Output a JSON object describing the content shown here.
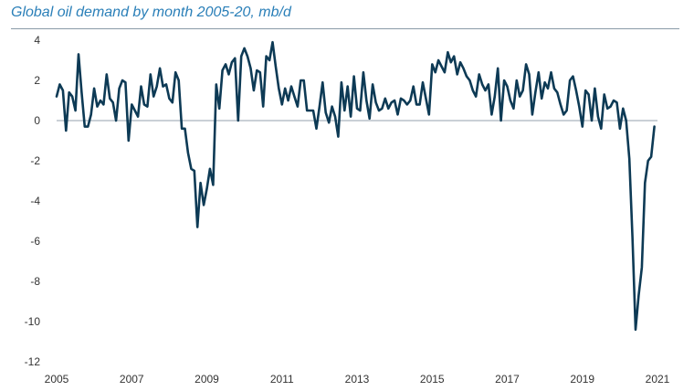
{
  "chart_data": {
    "type": "line",
    "title": "Global oil demand by month 2005-20, mb/d",
    "xlabel": "",
    "ylabel": "",
    "xlim": [
      2005.0,
      2021.0
    ],
    "ylim": [
      -12,
      4
    ],
    "x_ticks": [
      2005,
      2007,
      2009,
      2011,
      2013,
      2015,
      2017,
      2019,
      2021
    ],
    "y_ticks": [
      4,
      2,
      0,
      -2,
      -4,
      -6,
      -8,
      -10,
      -12
    ],
    "grid": false,
    "zero_line": true,
    "legend": "none",
    "line_color": "#0d3a55",
    "series": [
      {
        "x": [
          2005.0,
          2005.083,
          2005.167,
          2005.25,
          2005.333,
          2005.417,
          2005.5,
          2005.583,
          2005.667,
          2005.75,
          2005.833,
          2005.917,
          2006.0,
          2006.083,
          2006.167,
          2006.25,
          2006.333,
          2006.417,
          2006.5,
          2006.583,
          2006.667,
          2006.75,
          2006.833,
          2006.917,
          2007.0,
          2007.083,
          2007.167,
          2007.25,
          2007.333,
          2007.417,
          2007.5,
          2007.583,
          2007.667,
          2007.75,
          2007.833,
          2007.917,
          2008.0,
          2008.083,
          2008.167,
          2008.25,
          2008.333,
          2008.417,
          2008.5,
          2008.583,
          2008.667,
          2008.75,
          2008.833,
          2008.917,
          2009.0,
          2009.083,
          2009.167,
          2009.25,
          2009.333,
          2009.417,
          2009.5,
          2009.583,
          2009.667,
          2009.75,
          2009.833,
          2009.917,
          2010.0,
          2010.083,
          2010.167,
          2010.25,
          2010.333,
          2010.417,
          2010.5,
          2010.583,
          2010.667,
          2010.75,
          2010.833,
          2010.917,
          2011.0,
          2011.083,
          2011.167,
          2011.25,
          2011.333,
          2011.417,
          2011.5,
          2011.583,
          2011.667,
          2011.75,
          2011.833,
          2011.917,
          2012.0,
          2012.083,
          2012.167,
          2012.25,
          2012.333,
          2012.417,
          2012.5,
          2012.583,
          2012.667,
          2012.75,
          2012.833,
          2012.917,
          2013.0,
          2013.083,
          2013.167,
          2013.25,
          2013.333,
          2013.417,
          2013.5,
          2013.583,
          2013.667,
          2013.75,
          2013.833,
          2013.917,
          2014.0,
          2014.083,
          2014.167,
          2014.25,
          2014.333,
          2014.417,
          2014.5,
          2014.583,
          2014.667,
          2014.75,
          2014.833,
          2014.917,
          2015.0,
          2015.083,
          2015.167,
          2015.25,
          2015.333,
          2015.417,
          2015.5,
          2015.583,
          2015.667,
          2015.75,
          2015.833,
          2015.917,
          2016.0,
          2016.083,
          2016.167,
          2016.25,
          2016.333,
          2016.417,
          2016.5,
          2016.583,
          2016.667,
          2016.75,
          2016.833,
          2016.917,
          2017.0,
          2017.083,
          2017.167,
          2017.25,
          2017.333,
          2017.417,
          2017.5,
          2017.583,
          2017.667,
          2017.75,
          2017.833,
          2017.917,
          2018.0,
          2018.083,
          2018.167,
          2018.25,
          2018.333,
          2018.417,
          2018.5,
          2018.583,
          2018.667,
          2018.75,
          2018.833,
          2018.917,
          2019.0,
          2019.083,
          2019.167,
          2019.25,
          2019.333,
          2019.417,
          2019.5,
          2019.583,
          2019.667,
          2019.75,
          2019.833,
          2019.917,
          2020.0,
          2020.083,
          2020.167,
          2020.25,
          2020.333,
          2020.417,
          2020.5,
          2020.583,
          2020.667,
          2020.75,
          2020.833,
          2020.917
        ],
        "values": [
          1.2,
          1.8,
          1.5,
          -0.5,
          1.4,
          1.2,
          0.5,
          3.3,
          1.4,
          -0.3,
          -0.3,
          0.3,
          1.6,
          0.7,
          1.0,
          0.8,
          2.3,
          1.1,
          0.9,
          0.0,
          1.6,
          2.0,
          1.9,
          -1.0,
          0.8,
          0.5,
          0.2,
          1.7,
          0.8,
          0.7,
          2.3,
          1.2,
          1.7,
          2.6,
          1.7,
          1.8,
          1.1,
          0.9,
          2.4,
          2.0,
          -0.4,
          -0.4,
          -1.6,
          -2.4,
          -2.5,
          -5.3,
          -3.1,
          -4.2,
          -3.4,
          -2.4,
          -3.2,
          1.8,
          0.6,
          2.5,
          2.8,
          2.3,
          2.9,
          3.1,
          0.0,
          3.2,
          3.6,
          3.2,
          2.6,
          1.5,
          2.5,
          2.4,
          0.7,
          3.2,
          3.0,
          3.9,
          2.7,
          1.6,
          0.8,
          1.6,
          1.0,
          1.7,
          1.2,
          0.7,
          2.0,
          2.0,
          0.5,
          0.5,
          0.5,
          -0.4,
          0.7,
          1.9,
          0.4,
          -0.1,
          0.7,
          0.2,
          -0.8,
          1.9,
          0.5,
          1.7,
          0.2,
          2.2,
          0.6,
          0.5,
          2.4,
          1.0,
          0.1,
          1.8,
          0.9,
          0.5,
          0.6,
          1.1,
          0.6,
          0.9,
          1.0,
          0.3,
          1.1,
          1.0,
          0.8,
          1.0,
          1.7,
          0.8,
          0.8,
          1.9,
          1.1,
          0.3,
          2.8,
          2.4,
          3.0,
          2.7,
          2.4,
          3.4,
          2.9,
          3.2,
          2.3,
          2.9,
          2.6,
          2.2,
          2.0,
          1.5,
          1.2,
          2.3,
          1.8,
          1.5,
          1.8,
          0.3,
          1.2,
          2.6,
          0.0,
          2.0,
          1.7,
          1.0,
          0.6,
          2.0,
          1.2,
          1.5,
          2.8,
          2.3,
          0.3,
          1.4,
          2.4,
          1.1,
          1.9,
          1.6,
          2.4,
          1.6,
          1.4,
          0.8,
          0.3,
          0.5,
          2.0,
          2.2,
          1.5,
          0.7,
          -0.3,
          1.5,
          1.3,
          0.0,
          1.6,
          0.2,
          -0.4,
          1.3,
          0.6,
          0.7,
          1.0,
          0.9,
          -0.4,
          0.6,
          0.0,
          -1.9,
          -5.8,
          -10.4,
          -8.7,
          -7.3,
          -3.1,
          -2.0,
          -1.8,
          -0.3
        ]
      }
    ]
  }
}
